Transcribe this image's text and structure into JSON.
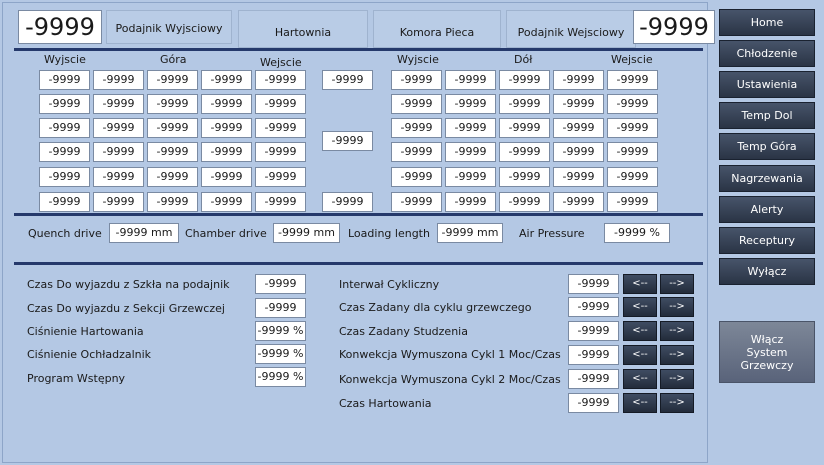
{
  "header": {
    "left_value": "-9999",
    "right_value": "-9999",
    "boxes": [
      "Podajnik Wyjsciowy",
      "Hartownia",
      "Komora Pieca",
      "Podajnik Wejsciowy"
    ]
  },
  "grid": {
    "left_headers": [
      "Wyjscie",
      "Góra",
      "Wejscie"
    ],
    "right_headers": [
      "Wyjscie",
      "Dół",
      "Wejscie"
    ],
    "cell": "-9999",
    "middle": [
      "-9999",
      "-9999",
      "-9999"
    ]
  },
  "drives": {
    "quench_label": "Quench drive",
    "quench_value": "-9999 mm",
    "chamber_label": "Chamber drive",
    "chamber_value": "-9999 mm",
    "loading_label": "Loading length",
    "loading_value": "-9999 mm",
    "air_label": "Air Pressure",
    "air_value": "-9999 %"
  },
  "left_params": [
    {
      "label": "Czas Do wyjazdu z Szkła na podajnik",
      "value": "-9999"
    },
    {
      "label": "Czas Do wyjazdu z Sekcji Grzewczej",
      "value": "-9999"
    },
    {
      "label": "Ciśnienie Hartowania",
      "value": "-9999 %"
    },
    {
      "label": "Ciśnienie Ochładzalnik",
      "value": "-9999 %"
    },
    {
      "label": "Program Wstępny",
      "value": "-9999 %"
    }
  ],
  "right_params": [
    {
      "label": "Interwał Cykliczny",
      "value": "-9999"
    },
    {
      "label": "Czas Zadany dla cyklu grzewczego",
      "value": "-9999"
    },
    {
      "label": "Czas Zadany Studzenia",
      "value": "-9999"
    },
    {
      "label": "Konwekcja Wymuszona Cykl 1 Moc/Czas",
      "value": "-9999"
    },
    {
      "label": "Konwekcja Wymuszona Cykl 2 Moc/Czas",
      "value": "-9999"
    },
    {
      "label": "Czas Hartowania",
      "value": "-9999"
    }
  ],
  "arrows": {
    "left": "<--",
    "right": "-->"
  },
  "nav": [
    "Home",
    "Chłodzenie",
    "Ustawienia",
    "Temp Dol",
    "Temp Góra",
    "Nagrzewania",
    "Alerty",
    "Receptury",
    "Wyłącz"
  ],
  "heater_button": [
    "Włącz",
    "System",
    "Grzewczy"
  ]
}
